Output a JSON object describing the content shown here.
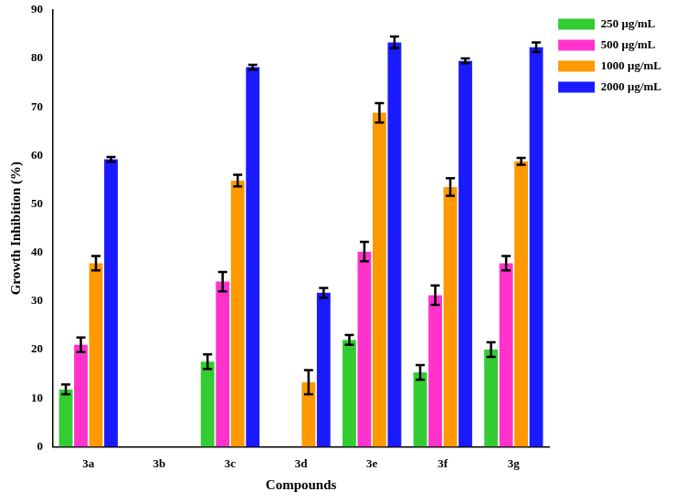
{
  "chart_data": {
    "type": "bar",
    "x_label": "Compounds",
    "y_label": "Growth Inhibition (%)",
    "categories": [
      "3a",
      "3b",
      "3c",
      "3d",
      "3e",
      "3f",
      "3g"
    ],
    "series": [
      {
        "name": "250 µg/mL",
        "color": "#33cc33",
        "values": [
          11.8,
          0,
          17.5,
          0,
          22,
          15.3,
          20
        ],
        "errors": [
          1,
          0,
          1.5,
          0,
          1,
          1.5,
          1.5
        ]
      },
      {
        "name": "500 µg/mL",
        "color": "#ff33cc",
        "values": [
          21,
          0,
          34,
          0,
          40.2,
          31.2,
          37.8
        ],
        "errors": [
          1.5,
          0,
          2,
          0,
          2,
          2,
          1.5
        ]
      },
      {
        "name": "1000 µg/mL",
        "color": "#ff9900",
        "values": [
          37.8,
          0,
          54.8,
          13.3,
          68.8,
          53.5,
          58.8
        ],
        "errors": [
          1.5,
          0,
          1.2,
          2.5,
          2,
          1.8,
          0.7
        ]
      },
      {
        "name": "2000 µg/mL",
        "color": "#1a1aff",
        "values": [
          59.2,
          0,
          78.2,
          31.7,
          83.3,
          79.5,
          82.3
        ],
        "errors": [
          0.5,
          0,
          0.5,
          1,
          1.2,
          0.5,
          1
        ]
      }
    ],
    "ylim": [
      0,
      90
    ],
    "yticks": [
      0,
      10,
      20,
      30,
      40,
      50,
      60,
      70,
      80,
      90
    ],
    "grid": false,
    "legend": "top-right"
  }
}
